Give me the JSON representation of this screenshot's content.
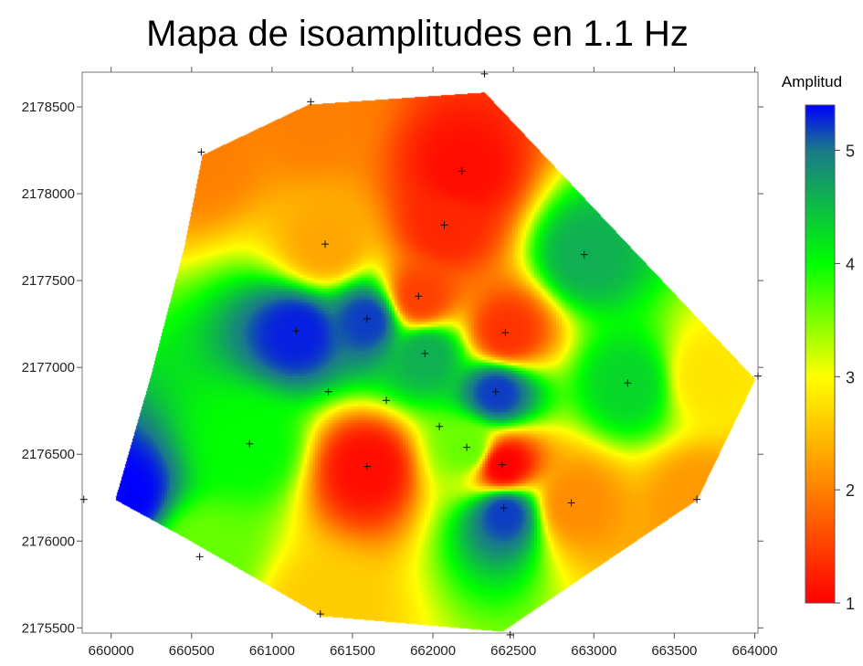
{
  "chart_data": {
    "type": "heatmap",
    "title": "Mapa de isoamplitudes en 1.1 Hz",
    "xlabel": "",
    "ylabel": "",
    "xlim": [
      659820,
      664020
    ],
    "ylim": [
      2175470,
      2178700
    ],
    "x_ticks": [
      660000,
      660500,
      661000,
      661500,
      662000,
      662500,
      663000,
      663500,
      664000
    ],
    "y_ticks": [
      2175500,
      2176000,
      2176500,
      2177000,
      2177500,
      2178000,
      2178500
    ],
    "x_tick_labels": [
      "660000",
      "660500",
      "661000",
      "661500",
      "662000",
      "662500",
      "663000",
      "663500",
      "664000"
    ],
    "y_tick_labels": [
      "2175500",
      "2176000",
      "2176500",
      "2177000",
      "2177500",
      "2178000",
      "2178500"
    ],
    "colorbar": {
      "title": "Amplitud",
      "min": 1,
      "max": 5.4,
      "ticks": [
        1,
        2,
        3,
        4,
        5
      ],
      "tick_labels": [
        "1",
        "2",
        "3",
        "4",
        "5"
      ],
      "colors": [
        "#ff0000",
        "#ff8000",
        "#ffff00",
        "#00ff00",
        "#1a7a8a",
        "#0000ff"
      ]
    },
    "boundary": [
      [
        660030,
        2176240
      ],
      [
        660250,
        2176950
      ],
      [
        660460,
        2177700
      ],
      [
        660570,
        2178220
      ],
      [
        661230,
        2178510
      ],
      [
        662320,
        2178580
      ],
      [
        664000,
        2176930
      ],
      [
        663640,
        2176240
      ],
      [
        662430,
        2175480
      ],
      [
        661310,
        2175570
      ],
      [
        660480,
        2176010
      ]
    ],
    "stations": [
      [
        659830,
        2176240
      ],
      [
        660560,
        2178240
      ],
      [
        661240,
        2178530
      ],
      [
        662320,
        2178690
      ],
      [
        662180,
        2178130
      ],
      [
        662070,
        2177820
      ],
      [
        661330,
        2177710
      ],
      [
        662940,
        2177650
      ],
      [
        661910,
        2177410
      ],
      [
        661590,
        2177280
      ],
      [
        661150,
        2177210
      ],
      [
        662450,
        2177200
      ],
      [
        661950,
        2177080
      ],
      [
        663210,
        2176910
      ],
      [
        661350,
        2176860
      ],
      [
        661710,
        2176810
      ],
      [
        662390,
        2176860
      ],
      [
        662040,
        2176660
      ],
      [
        660860,
        2176560
      ],
      [
        662210,
        2176540
      ],
      [
        661590,
        2176430
      ],
      [
        662430,
        2176440
      ],
      [
        662440,
        2176190
      ],
      [
        662860,
        2176220
      ],
      [
        663640,
        2176240
      ],
      [
        660550,
        2175910
      ],
      [
        661300,
        2175580
      ],
      [
        662480,
        2175460
      ],
      [
        664020,
        2176950
      ]
    ],
    "anomalies": [
      {
        "x": 660070,
        "y": 2176270,
        "value": 5.4
      },
      {
        "x": 661150,
        "y": 2177210,
        "value": 5.3
      },
      {
        "x": 661590,
        "y": 2177280,
        "value": 5.2
      },
      {
        "x": 662390,
        "y": 2176860,
        "value": 5.2
      },
      {
        "x": 662440,
        "y": 2176170,
        "value": 5.2
      },
      {
        "x": 662940,
        "y": 2177650,
        "value": 4.6
      },
      {
        "x": 663210,
        "y": 2176910,
        "value": 4.3
      },
      {
        "x": 661950,
        "y": 2177080,
        "value": 4.6
      },
      {
        "x": 662180,
        "y": 2178130,
        "value": 1.1
      },
      {
        "x": 662070,
        "y": 2177820,
        "value": 1.3
      },
      {
        "x": 661910,
        "y": 2177410,
        "value": 1.5
      },
      {
        "x": 662450,
        "y": 2177200,
        "value": 1.4
      },
      {
        "x": 661590,
        "y": 2176430,
        "value": 1.1
      },
      {
        "x": 662430,
        "y": 2176440,
        "value": 1.0
      },
      {
        "x": 661330,
        "y": 2177710,
        "value": 2.3
      },
      {
        "x": 660560,
        "y": 2178240,
        "value": 2.0
      },
      {
        "x": 661240,
        "y": 2178450,
        "value": 2.0
      },
      {
        "x": 662860,
        "y": 2176220,
        "value": 2.1
      },
      {
        "x": 663640,
        "y": 2176240,
        "value": 2.2
      },
      {
        "x": 660860,
        "y": 2176560,
        "value": 4.0
      },
      {
        "x": 662210,
        "y": 2176540,
        "value": 3.6
      },
      {
        "x": 661310,
        "y": 2175600,
        "value": 2.6
      },
      {
        "x": 660550,
        "y": 2175950,
        "value": 3.6
      },
      {
        "x": 663700,
        "y": 2176950,
        "value": 2.8
      }
    ]
  }
}
